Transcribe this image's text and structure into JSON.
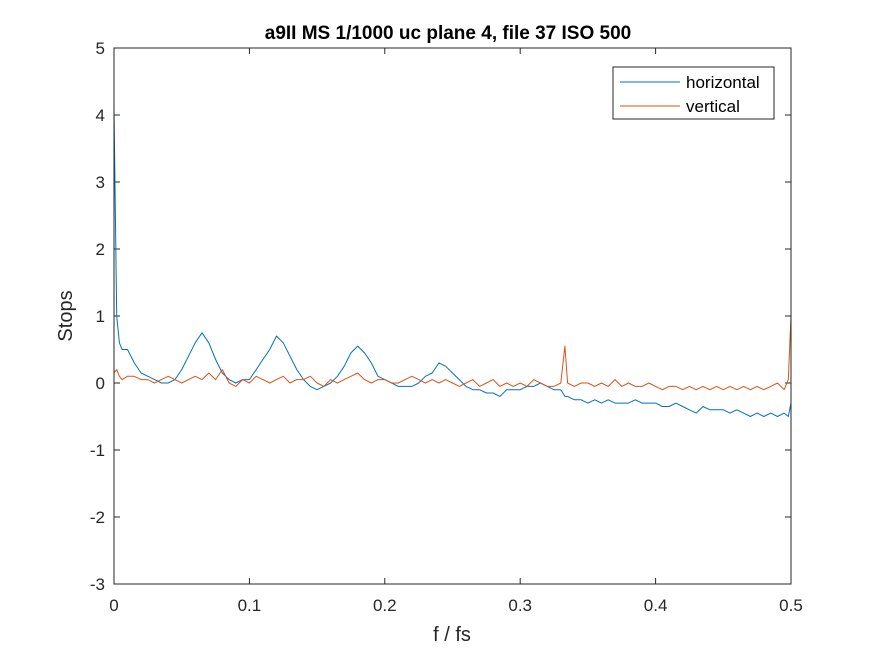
{
  "chart_data": {
    "type": "line",
    "title": "a9II MS 1/1000 uc plane 4, file 37 ISO 500",
    "xlabel": "f / fs",
    "ylabel": "Stops",
    "xlim": [
      0,
      0.5
    ],
    "ylim": [
      -3,
      5
    ],
    "xticks": [
      0,
      0.1,
      0.2,
      0.3,
      0.4,
      0.5
    ],
    "xtick_labels": [
      "0",
      "0.1",
      "0.2",
      "0.3",
      "0.4",
      "0.5"
    ],
    "yticks": [
      -3,
      -2,
      -1,
      0,
      1,
      2,
      3,
      4,
      5
    ],
    "ytick_labels": [
      "-3",
      "-2",
      "-1",
      "0",
      "1",
      "2",
      "3",
      "4",
      "5"
    ],
    "grid": false,
    "legend_position": "top-right",
    "colors": {
      "horizontal": "#0072BD",
      "vertical": "#D95319"
    },
    "x": [
      0,
      0.002,
      0.004,
      0.006,
      0.01,
      0.015,
      0.02,
      0.025,
      0.03,
      0.035,
      0.04,
      0.045,
      0.05,
      0.055,
      0.06,
      0.065,
      0.07,
      0.075,
      0.08,
      0.085,
      0.09,
      0.095,
      0.1,
      0.105,
      0.11,
      0.115,
      0.12,
      0.125,
      0.13,
      0.135,
      0.14,
      0.145,
      0.15,
      0.155,
      0.16,
      0.165,
      0.17,
      0.175,
      0.18,
      0.185,
      0.19,
      0.195,
      0.2,
      0.205,
      0.21,
      0.215,
      0.22,
      0.225,
      0.23,
      0.235,
      0.24,
      0.245,
      0.25,
      0.255,
      0.26,
      0.265,
      0.27,
      0.275,
      0.28,
      0.285,
      0.29,
      0.295,
      0.3,
      0.305,
      0.31,
      0.315,
      0.32,
      0.325,
      0.33,
      0.333,
      0.335,
      0.34,
      0.345,
      0.35,
      0.355,
      0.36,
      0.365,
      0.37,
      0.375,
      0.38,
      0.385,
      0.39,
      0.395,
      0.4,
      0.405,
      0.41,
      0.415,
      0.42,
      0.425,
      0.43,
      0.435,
      0.44,
      0.445,
      0.45,
      0.455,
      0.46,
      0.465,
      0.47,
      0.475,
      0.48,
      0.485,
      0.49,
      0.495,
      0.498,
      0.5
    ],
    "series": [
      {
        "name": "horizontal",
        "values": [
          4.1,
          1.0,
          0.6,
          0.5,
          0.5,
          0.3,
          0.15,
          0.1,
          0.05,
          0.0,
          0.0,
          0.05,
          0.2,
          0.4,
          0.6,
          0.75,
          0.6,
          0.35,
          0.15,
          0.05,
          0.0,
          0.05,
          0.05,
          0.2,
          0.35,
          0.5,
          0.7,
          0.6,
          0.4,
          0.2,
          0.05,
          -0.05,
          -0.1,
          -0.05,
          0.0,
          0.1,
          0.25,
          0.45,
          0.55,
          0.45,
          0.3,
          0.1,
          0.05,
          0.0,
          -0.05,
          -0.05,
          -0.05,
          0.0,
          0.1,
          0.15,
          0.3,
          0.25,
          0.15,
          0.05,
          -0.05,
          -0.1,
          -0.1,
          -0.15,
          -0.15,
          -0.2,
          -0.1,
          -0.1,
          -0.1,
          -0.05,
          -0.05,
          0.0,
          -0.05,
          -0.1,
          -0.1,
          -0.2,
          -0.2,
          -0.25,
          -0.25,
          -0.3,
          -0.25,
          -0.3,
          -0.25,
          -0.3,
          -0.3,
          -0.3,
          -0.25,
          -0.3,
          -0.3,
          -0.3,
          -0.35,
          -0.35,
          -0.3,
          -0.35,
          -0.4,
          -0.45,
          -0.35,
          -0.4,
          -0.4,
          -0.4,
          -0.45,
          -0.4,
          -0.45,
          -0.5,
          -0.45,
          -0.5,
          -0.45,
          -0.5,
          -0.45,
          -0.5,
          -0.3
        ]
      },
      {
        "name": "vertical",
        "values": [
          0.15,
          0.2,
          0.1,
          0.05,
          0.1,
          0.1,
          0.05,
          0.05,
          0.0,
          0.05,
          0.1,
          0.05,
          0.0,
          0.05,
          0.1,
          0.05,
          0.15,
          0.05,
          0.2,
          0.0,
          -0.05,
          0.05,
          0.0,
          0.1,
          0.05,
          0.0,
          0.05,
          0.1,
          0.0,
          0.05,
          0.05,
          0.1,
          0.0,
          -0.05,
          0.05,
          0.0,
          0.05,
          0.1,
          0.15,
          0.05,
          0.0,
          0.05,
          0.05,
          0.0,
          0.0,
          0.05,
          0.1,
          0.05,
          0.0,
          0.05,
          0.0,
          0.05,
          0.0,
          -0.05,
          0.0,
          0.05,
          -0.05,
          0.0,
          0.05,
          -0.05,
          0.0,
          -0.05,
          0.0,
          -0.05,
          0.05,
          0.0,
          -0.05,
          -0.05,
          0.0,
          0.55,
          0.0,
          -0.05,
          0.0,
          0.0,
          -0.05,
          0.0,
          -0.05,
          0.05,
          -0.05,
          0.0,
          -0.05,
          -0.05,
          0.0,
          -0.05,
          -0.1,
          -0.05,
          -0.05,
          -0.1,
          -0.05,
          -0.1,
          -0.05,
          -0.1,
          -0.05,
          -0.1,
          -0.05,
          -0.1,
          -0.05,
          -0.1,
          -0.05,
          -0.1,
          -0.05,
          0.0,
          -0.1,
          0.05,
          1.0
        ]
      }
    ]
  }
}
